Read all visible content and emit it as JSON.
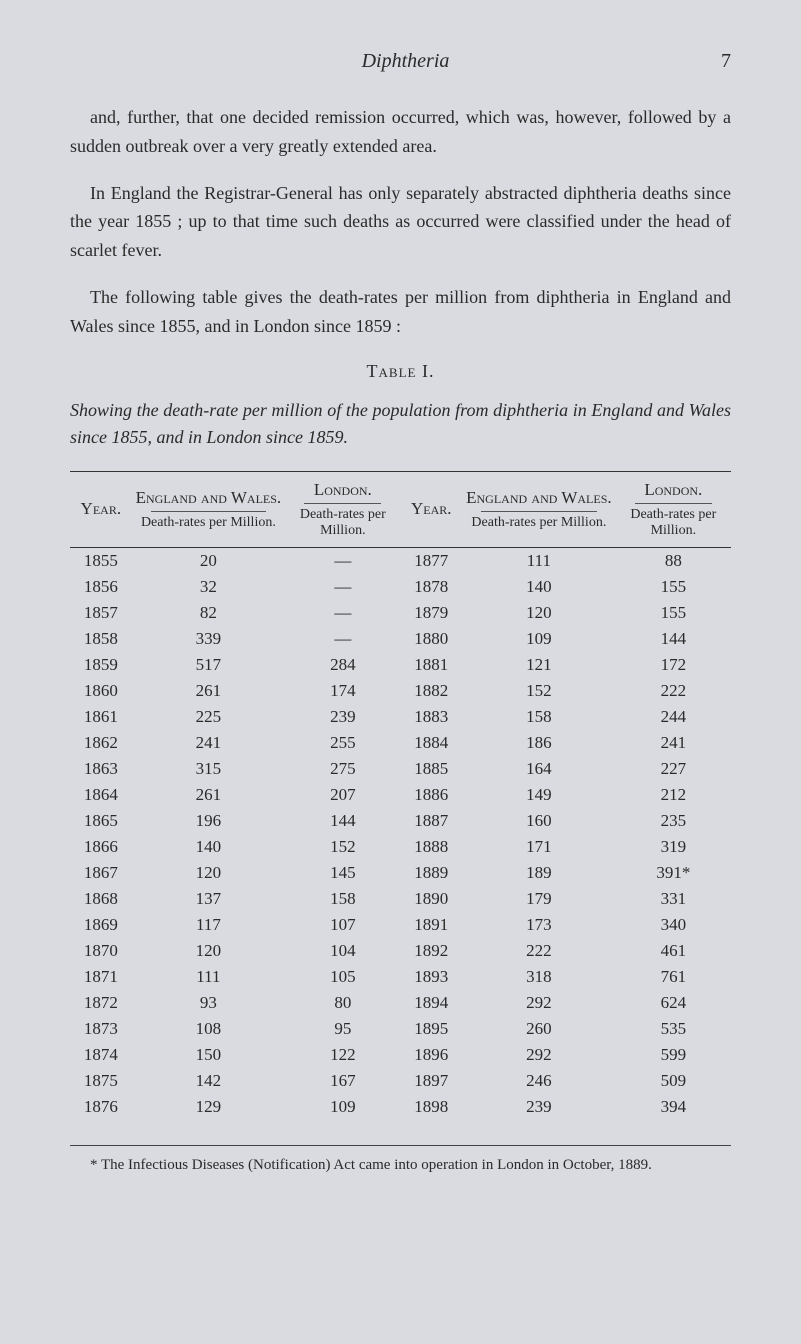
{
  "header": {
    "title": "Diphtheria",
    "page_number": "7"
  },
  "paragraphs": {
    "p1": "and, further, that one decided remission occurred, which was, however, followed by a sudden outbreak over a very greatly extended area.",
    "p2": "In England the Registrar-General has only separately abstracted diphtheria deaths since the year 1855 ; up to that time such deaths as occurred were classified under the head of scarlet fever.",
    "p3": "The following table gives the death-rates per million from diphtheria in England and Wales since 1855, and in London since 1859 :"
  },
  "table": {
    "label": "Table I.",
    "caption": "Showing the death-rate per million of the population from diphtheria in England and Wales since 1855, and in London since 1859.",
    "headers": {
      "year": "Year.",
      "england_wales": "England and Wales.",
      "london": "London.",
      "death_rates": "Death-rates per Million."
    },
    "rows_left": [
      {
        "year": "1855",
        "ew": "20",
        "lon": "—"
      },
      {
        "year": "1856",
        "ew": "32",
        "lon": "—"
      },
      {
        "year": "1857",
        "ew": "82",
        "lon": "—"
      },
      {
        "year": "1858",
        "ew": "339",
        "lon": "—"
      },
      {
        "year": "1859",
        "ew": "517",
        "lon": "284"
      },
      {
        "year": "1860",
        "ew": "261",
        "lon": "174"
      },
      {
        "year": "1861",
        "ew": "225",
        "lon": "239"
      },
      {
        "year": "1862",
        "ew": "241",
        "lon": "255"
      },
      {
        "year": "1863",
        "ew": "315",
        "lon": "275"
      },
      {
        "year": "1864",
        "ew": "261",
        "lon": "207"
      },
      {
        "year": "1865",
        "ew": "196",
        "lon": "144"
      },
      {
        "year": "1866",
        "ew": "140",
        "lon": "152"
      },
      {
        "year": "1867",
        "ew": "120",
        "lon": "145"
      },
      {
        "year": "1868",
        "ew": "137",
        "lon": "158"
      },
      {
        "year": "1869",
        "ew": "117",
        "lon": "107"
      },
      {
        "year": "1870",
        "ew": "120",
        "lon": "104"
      },
      {
        "year": "1871",
        "ew": "111",
        "lon": "105"
      },
      {
        "year": "1872",
        "ew": "93",
        "lon": "80"
      },
      {
        "year": "1873",
        "ew": "108",
        "lon": "95"
      },
      {
        "year": "1874",
        "ew": "150",
        "lon": "122"
      },
      {
        "year": "1875",
        "ew": "142",
        "lon": "167"
      },
      {
        "year": "1876",
        "ew": "129",
        "lon": "109"
      }
    ],
    "rows_right": [
      {
        "year": "1877",
        "ew": "111",
        "lon": "88"
      },
      {
        "year": "1878",
        "ew": "140",
        "lon": "155"
      },
      {
        "year": "1879",
        "ew": "120",
        "lon": "155"
      },
      {
        "year": "1880",
        "ew": "109",
        "lon": "144"
      },
      {
        "year": "1881",
        "ew": "121",
        "lon": "172"
      },
      {
        "year": "1882",
        "ew": "152",
        "lon": "222"
      },
      {
        "year": "1883",
        "ew": "158",
        "lon": "244"
      },
      {
        "year": "1884",
        "ew": "186",
        "lon": "241"
      },
      {
        "year": "1885",
        "ew": "164",
        "lon": "227"
      },
      {
        "year": "1886",
        "ew": "149",
        "lon": "212"
      },
      {
        "year": "1887",
        "ew": "160",
        "lon": "235"
      },
      {
        "year": "1888",
        "ew": "171",
        "lon": "319"
      },
      {
        "year": "1889",
        "ew": "189",
        "lon": "391*"
      },
      {
        "year": "1890",
        "ew": "179",
        "lon": "331"
      },
      {
        "year": "1891",
        "ew": "173",
        "lon": "340"
      },
      {
        "year": "1892",
        "ew": "222",
        "lon": "461"
      },
      {
        "year": "1893",
        "ew": "318",
        "lon": "761"
      },
      {
        "year": "1894",
        "ew": "292",
        "lon": "624"
      },
      {
        "year": "1895",
        "ew": "260",
        "lon": "535"
      },
      {
        "year": "1896",
        "ew": "292",
        "lon": "599"
      },
      {
        "year": "1897",
        "ew": "246",
        "lon": "509"
      },
      {
        "year": "1898",
        "ew": "239",
        "lon": "394"
      }
    ]
  },
  "footnote": "* The Infectious Diseases (Notification) Act came into operation in London in October, 1889."
}
